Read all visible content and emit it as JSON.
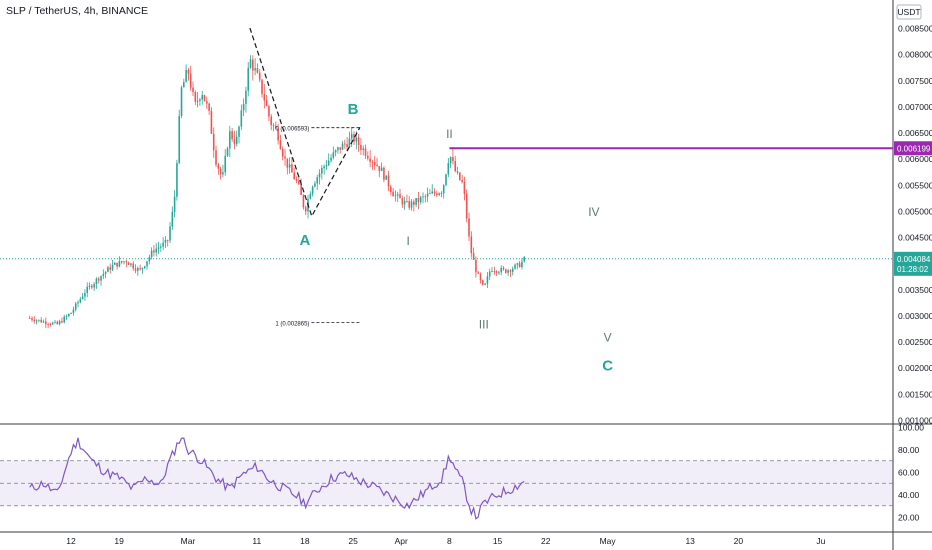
{
  "header": {
    "symbol_line": "SLP / TetherUS, 4h, BINANCE"
  },
  "chart_data": {
    "type": "candlestick",
    "title": "SLP / TetherUS, 4h, BINANCE",
    "currency": "USDT",
    "ylim": [
      0.001,
      0.0086
    ],
    "y_ticks": [
      "0.008500",
      "0.008000",
      "0.007500",
      "0.007000",
      "0.006500",
      "0.006000",
      "0.005500",
      "0.005000",
      "0.004500",
      "0.004000",
      "0.003500",
      "0.003000",
      "0.002500",
      "0.002000",
      "0.001500",
      "0.001000"
    ],
    "x_ticks": [
      "12",
      "19",
      "Mar",
      "11",
      "18",
      "25",
      "Apr",
      "8",
      "15",
      "22",
      "May",
      "13",
      "20",
      "Ju"
    ],
    "price_path": [
      [
        "Feb 6",
        0.00295
      ],
      [
        "Feb 8",
        0.00288
      ],
      [
        "Feb 10",
        0.00283
      ],
      [
        "Feb 12",
        0.00305
      ],
      [
        "Feb 14",
        0.00345
      ],
      [
        "Feb 16",
        0.00372
      ],
      [
        "Feb 18",
        0.00395
      ],
      [
        "Feb 20",
        0.00405
      ],
      [
        "Feb 22",
        0.00385
      ],
      [
        "Feb 24",
        0.00425
      ],
      [
        "Feb 26",
        0.0044
      ],
      [
        "Feb 27",
        0.00515
      ],
      [
        "Feb 28",
        0.0073
      ],
      [
        "Mar 1",
        0.0077
      ],
      [
        "Mar 2",
        0.007
      ],
      [
        "Mar 3",
        0.0073
      ],
      [
        "Mar 4",
        0.0069
      ],
      [
        "Mar 5",
        0.006
      ],
      [
        "Mar 6",
        0.0056
      ],
      [
        "Mar 7",
        0.0065
      ],
      [
        "Mar 8",
        0.0063
      ],
      [
        "Mar 9",
        0.007
      ],
      [
        "Mar 10",
        0.0079
      ],
      [
        "Mar 11",
        0.0076
      ],
      [
        "Mar 12",
        0.0072
      ],
      [
        "Mar 13",
        0.0067
      ],
      [
        "Mar 14",
        0.0065
      ],
      [
        "Mar 15",
        0.006
      ],
      [
        "Mar 17",
        0.0055
      ],
      [
        "Mar 18",
        0.005
      ],
      [
        "Mar 19",
        0.0055
      ],
      [
        "Mar 21",
        0.0059
      ],
      [
        "Mar 23",
        0.0062
      ],
      [
        "Mar 25",
        0.0064
      ],
      [
        "Mar 27",
        0.0061
      ],
      [
        "Mar 29",
        0.0058
      ],
      [
        "Mar 31",
        0.0053
      ],
      [
        "Apr 2",
        0.0051
      ],
      [
        "Apr 5",
        0.0053
      ],
      [
        "Apr 7",
        0.0054
      ],
      [
        "Apr 8",
        0.0061
      ],
      [
        "Apr 9",
        0.0057
      ],
      [
        "Apr 10",
        0.0055
      ],
      [
        "Apr 11",
        0.0043
      ],
      [
        "Apr 12",
        0.0038
      ],
      [
        "Apr 13",
        0.0035
      ],
      [
        "Apr 14",
        0.0039
      ],
      [
        "Apr 16",
        0.00385
      ],
      [
        "Apr 18",
        0.00395
      ],
      [
        "Apr 19",
        0.004084
      ]
    ],
    "current_price": {
      "value": 0.004084,
      "label": "0.004084",
      "countdown": "01:28:02"
    },
    "horizontal_level": {
      "value": 0.006199,
      "label": "0.006199",
      "color": "#9c27b0"
    },
    "fib_levels": [
      {
        "label": "0 (0.006593)",
        "value": 0.006593
      },
      {
        "label": "1 (0.002865)",
        "value": 0.002865
      }
    ],
    "wave_labels": [
      {
        "text": "B",
        "date": "Mar 25",
        "price": 0.00685,
        "color": "#26a69a"
      },
      {
        "text": "A",
        "date": "Mar 18",
        "price": 0.00435,
        "color": "#26a69a"
      },
      {
        "text": "II",
        "date": "Apr 8",
        "price": 0.0064,
        "color": "#5d7a75"
      },
      {
        "text": "I",
        "date": "Apr 2",
        "price": 0.00435,
        "color": "#5d7a75"
      },
      {
        "text": "IV",
        "date": "Apr 29",
        "price": 0.0049,
        "color": "#5d7a75"
      },
      {
        "text": "III",
        "date": "Apr 13",
        "price": 0.00275,
        "color": "#5d7a75"
      },
      {
        "text": "V",
        "date": "May 1",
        "price": 0.0025,
        "color": "#5d7a75"
      },
      {
        "text": "C",
        "date": "May 1",
        "price": 0.00195,
        "color": "#26a69a"
      }
    ],
    "rsi": {
      "ylim": [
        10,
        100
      ],
      "ticks": [
        "100.00",
        "80.00",
        "60.00",
        "40.00",
        "20.00"
      ],
      "band": [
        30,
        70
      ],
      "path": [
        [
          "Feb 6",
          45
        ],
        [
          "Feb 8",
          50
        ],
        [
          "Feb 10",
          40
        ],
        [
          "Feb 12",
          78
        ],
        [
          "Feb 13",
          88
        ],
        [
          "Feb 15",
          70
        ],
        [
          "Feb 17",
          60
        ],
        [
          "Feb 19",
          55
        ],
        [
          "Feb 21",
          45
        ],
        [
          "Feb 23",
          55
        ],
        [
          "Feb 25",
          48
        ],
        [
          "Feb 26",
          65
        ],
        [
          "Feb 28",
          92
        ],
        [
          "Mar 1",
          80
        ],
        [
          "Mar 3",
          70
        ],
        [
          "Mar 5",
          55
        ],
        [
          "Mar 7",
          45
        ],
        [
          "Mar 9",
          58
        ],
        [
          "Mar 11",
          65
        ],
        [
          "Mar 13",
          52
        ],
        [
          "Mar 15",
          45
        ],
        [
          "Mar 17",
          38
        ],
        [
          "Mar 18",
          32
        ],
        [
          "Mar 20",
          45
        ],
        [
          "Mar 22",
          55
        ],
        [
          "Mar 24",
          58
        ],
        [
          "Mar 26",
          52
        ],
        [
          "Mar 28",
          47
        ],
        [
          "Mar 30",
          40
        ],
        [
          "Apr 2",
          30
        ],
        [
          "Apr 5",
          45
        ],
        [
          "Apr 7",
          55
        ],
        [
          "Apr 8",
          75
        ],
        [
          "Apr 9",
          60
        ],
        [
          "Apr 10",
          50
        ],
        [
          "Apr 11",
          28
        ],
        [
          "Apr 12",
          20
        ],
        [
          "Apr 13",
          32
        ],
        [
          "Apr 15",
          40
        ],
        [
          "Apr 17",
          45
        ],
        [
          "Apr 19",
          52
        ]
      ]
    }
  }
}
